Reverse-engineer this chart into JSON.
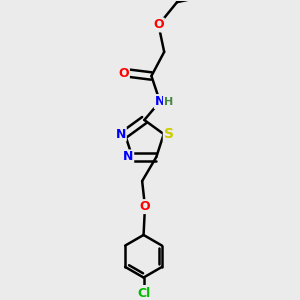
{
  "background_color": "#ebebeb",
  "bond_color": "#000000",
  "bond_width": 1.8,
  "atom_colors": {
    "O": "#ff0000",
    "N": "#0000ff",
    "S": "#cccc00",
    "Cl": "#00bb00",
    "C": "#000000",
    "H": "#448844"
  },
  "font_size": 9,
  "fig_width": 3.0,
  "fig_height": 3.0
}
